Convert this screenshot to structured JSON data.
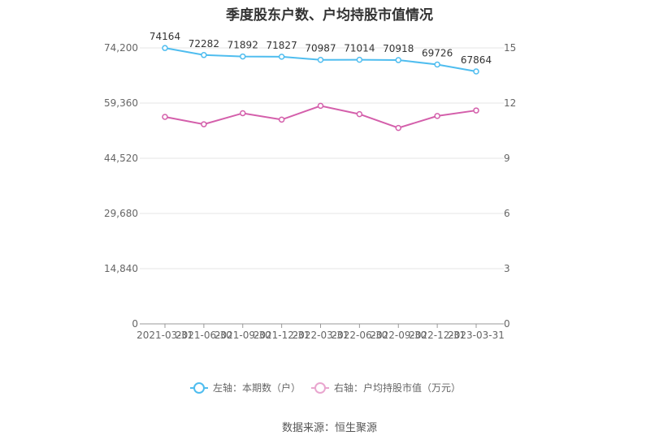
{
  "title": "季度股东户数、户均持股市值情况",
  "source": "数据来源：恒生聚源",
  "chart_data": {
    "type": "line",
    "categories": [
      "2021-03-31",
      "2021-06-30",
      "2021-09-30",
      "2021-12-31",
      "2022-03-31",
      "2022-06-30",
      "2022-09-30",
      "2022-12-31",
      "2023-03-31"
    ],
    "series": [
      {
        "name": "左轴：本期数（户）",
        "axis": "left",
        "color": "#4fbdef",
        "values": [
          74164,
          72282,
          71892,
          71827,
          70987,
          71014,
          70918,
          69726,
          67864
        ],
        "labels": [
          "74164",
          "72282",
          "71892",
          "71827",
          "70987",
          "71014",
          "70918",
          "69726",
          "67864"
        ]
      },
      {
        "name": "右轴：户均持股市值（万元）",
        "axis": "right",
        "color": "#d45fab",
        "values": [
          11.25,
          10.85,
          11.45,
          11.1,
          11.85,
          11.4,
          10.65,
          11.3,
          11.6
        ]
      }
    ],
    "left_axis": {
      "ticks": [
        0,
        14840,
        29680,
        44520,
        59360,
        74200
      ],
      "tick_labels": [
        "0",
        "14,840",
        "29,680",
        "44,520",
        "59,360",
        "74,200"
      ],
      "ylim": [
        0,
        74200
      ]
    },
    "right_axis": {
      "ticks": [
        0,
        3,
        6,
        9,
        12,
        15
      ],
      "tick_labels": [
        "0",
        "3",
        "6",
        "9",
        "12",
        "15"
      ],
      "ylim": [
        0,
        15
      ]
    },
    "grid": true,
    "legend_position": "bottom"
  }
}
